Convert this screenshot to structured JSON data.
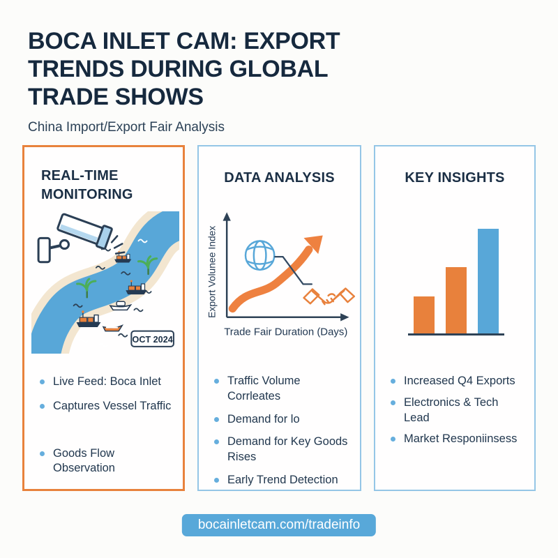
{
  "page": {
    "title_lines": [
      "BOCA INLET CAM: EXPORT",
      "TRENDS DURING GLOBAL",
      "TRADE SHOWS"
    ],
    "subtitle": "China Import/Export Fair Analysis",
    "footer_url": "bocainletcam.com/tradeinfo"
  },
  "colors": {
    "navy_text": "#16293e",
    "orange_accent": "#e8823c",
    "blue_accent": "#58a7d8",
    "panel_blue_border": "#94c6e6",
    "bullet_dot": "#66aedd",
    "river_blue": "#58a7d8",
    "sand": "#f3e6d0",
    "palm_green": "#4cae58"
  },
  "icons": [
    "cctv-camera-icon",
    "palm-tree-icon",
    "cargo-ship-icon",
    "yacht-icon",
    "speedboat-icon",
    "globe-icon",
    "handshake-icon",
    "wave-icon"
  ],
  "panels": {
    "monitoring": {
      "title": "REAL-TIME MONITORING",
      "badge": "OCT 2024",
      "bullets": [
        "Live Feed: Boca Inlet",
        "Captures Vessel Traffic",
        "Goods Flow Observation"
      ]
    },
    "analysis": {
      "title": "DATA ANALYSIS",
      "bullets": [
        "Traffic Volume Corrleates",
        "Demand for lo",
        "Demand for Key Goods Rises",
        "Early Trend Detection"
      ]
    },
    "insights": {
      "title": "KEY INSIGHTS",
      "bullets": [
        "Increased Q4 Exports",
        "Electronics & Tech Lead",
        "Market Responiinsess"
      ]
    }
  },
  "chart_data": [
    {
      "type": "line",
      "panel": "DATA ANALYSIS",
      "title": "",
      "xlabel": "Trade Fair Duration (Days)",
      "ylabel": "Export Volunee Index",
      "x_normalized": [
        0,
        0.25,
        0.5,
        0.75,
        1
      ],
      "y_normalized": [
        0.08,
        0.25,
        0.42,
        0.65,
        0.92
      ],
      "style": "thick orange upward-curving arrow, no ticks, no gridlines",
      "annotations": [
        "globe-icon callout line crossing curve",
        "handshake-icon lower right"
      ]
    },
    {
      "type": "bar",
      "panel": "KEY INSIGHTS",
      "categories": [
        "bar-1",
        "bar-2",
        "bar-3"
      ],
      "values": [
        35,
        63,
        100
      ],
      "unit": "relative height (no axis values shown)",
      "colors": [
        "#e8813c",
        "#e8813c",
        "#58a7d8"
      ],
      "ylim": [
        0,
        100
      ],
      "grid": false,
      "legend": false
    }
  ]
}
